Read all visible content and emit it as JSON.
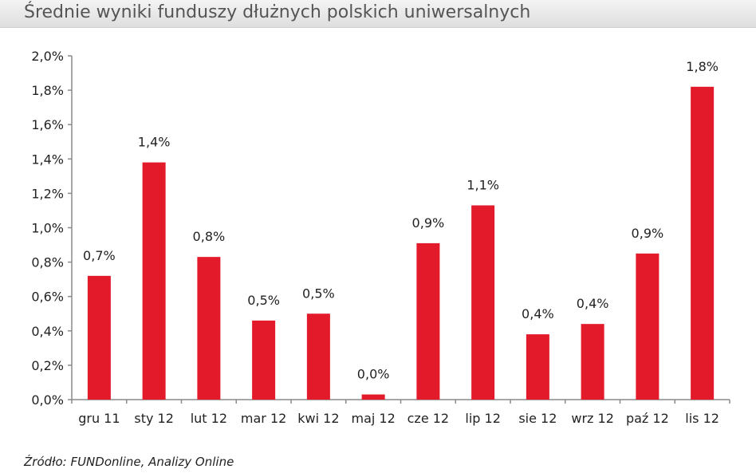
{
  "title": "Średnie wyniki funduszy dłużnych polskich uniwersalnych",
  "source": "Źródło: FUNDonline, Analizy Online",
  "colors": {
    "bar": "#e21a2a",
    "axis": "#8a8a8a"
  },
  "chart_data": {
    "type": "bar",
    "title": "Średnie wyniki funduszy dłużnych polskich uniwersalnych",
    "xlabel": "",
    "ylabel": "",
    "ylim": [
      0,
      2.0
    ],
    "grid": false,
    "legend": "none",
    "yticks": [
      "0,0%",
      "0,2%",
      "0,4%",
      "0,6%",
      "0,8%",
      "1,0%",
      "1,2%",
      "1,4%",
      "1,6%",
      "1,8%",
      "2,0%"
    ],
    "categories": [
      "gru 11",
      "sty 12",
      "lut 12",
      "mar 12",
      "kwi 12",
      "maj 12",
      "cze 12",
      "lip 12",
      "sie 12",
      "wrz 12",
      "paź 12",
      "lis 12"
    ],
    "values": [
      0.72,
      1.38,
      0.83,
      0.46,
      0.5,
      0.03,
      0.91,
      1.13,
      0.38,
      0.44,
      0.85,
      1.82
    ],
    "data_labels": [
      "0,7%",
      "1,4%",
      "0,8%",
      "0,5%",
      "0,5%",
      "0,0%",
      "0,9%",
      "1,1%",
      "0,4%",
      "0,4%",
      "0,9%",
      "1,8%"
    ]
  }
}
